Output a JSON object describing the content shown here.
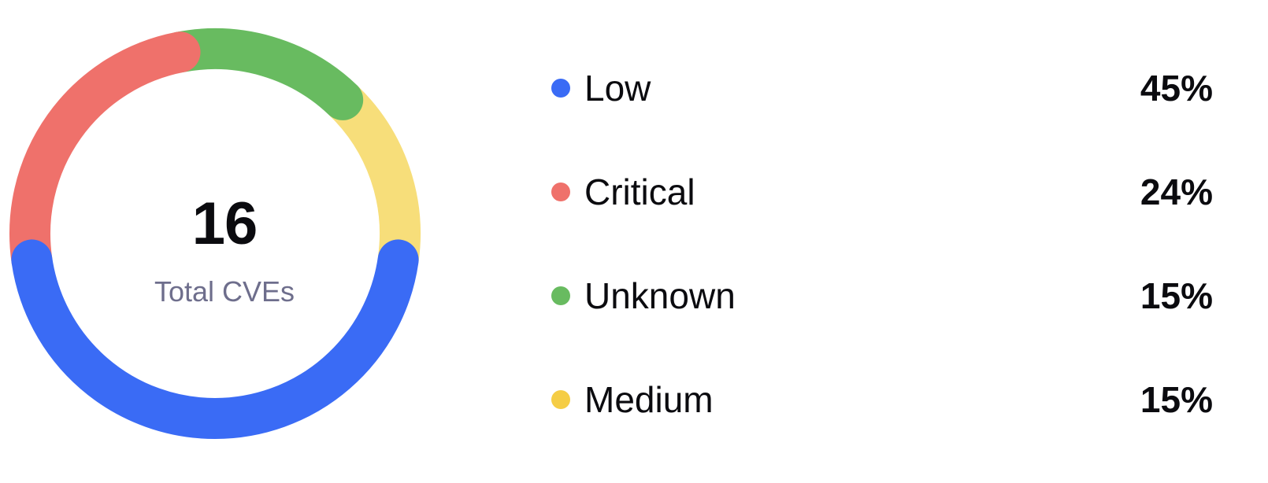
{
  "chart_data": {
    "type": "pie",
    "variant": "donut",
    "center": {
      "total": "16",
      "label": "Total CVEs"
    },
    "slices": [
      {
        "name": "Low",
        "value": 45,
        "display": "45%",
        "color": "#3a6bf5"
      },
      {
        "name": "Critical",
        "value": 24,
        "display": "24%",
        "color": "#ef716b"
      },
      {
        "name": "Unknown",
        "value": 15,
        "display": "15%",
        "color": "#68bb60"
      },
      {
        "name": "Medium",
        "value": 15,
        "display": "15%",
        "color": "#f7de7a"
      }
    ],
    "legend_position": "right",
    "legend_dot_colors": {
      "Low": "#3a6bf5",
      "Critical": "#ef716b",
      "Unknown": "#68bb60",
      "Medium": "#f5cd45"
    }
  }
}
